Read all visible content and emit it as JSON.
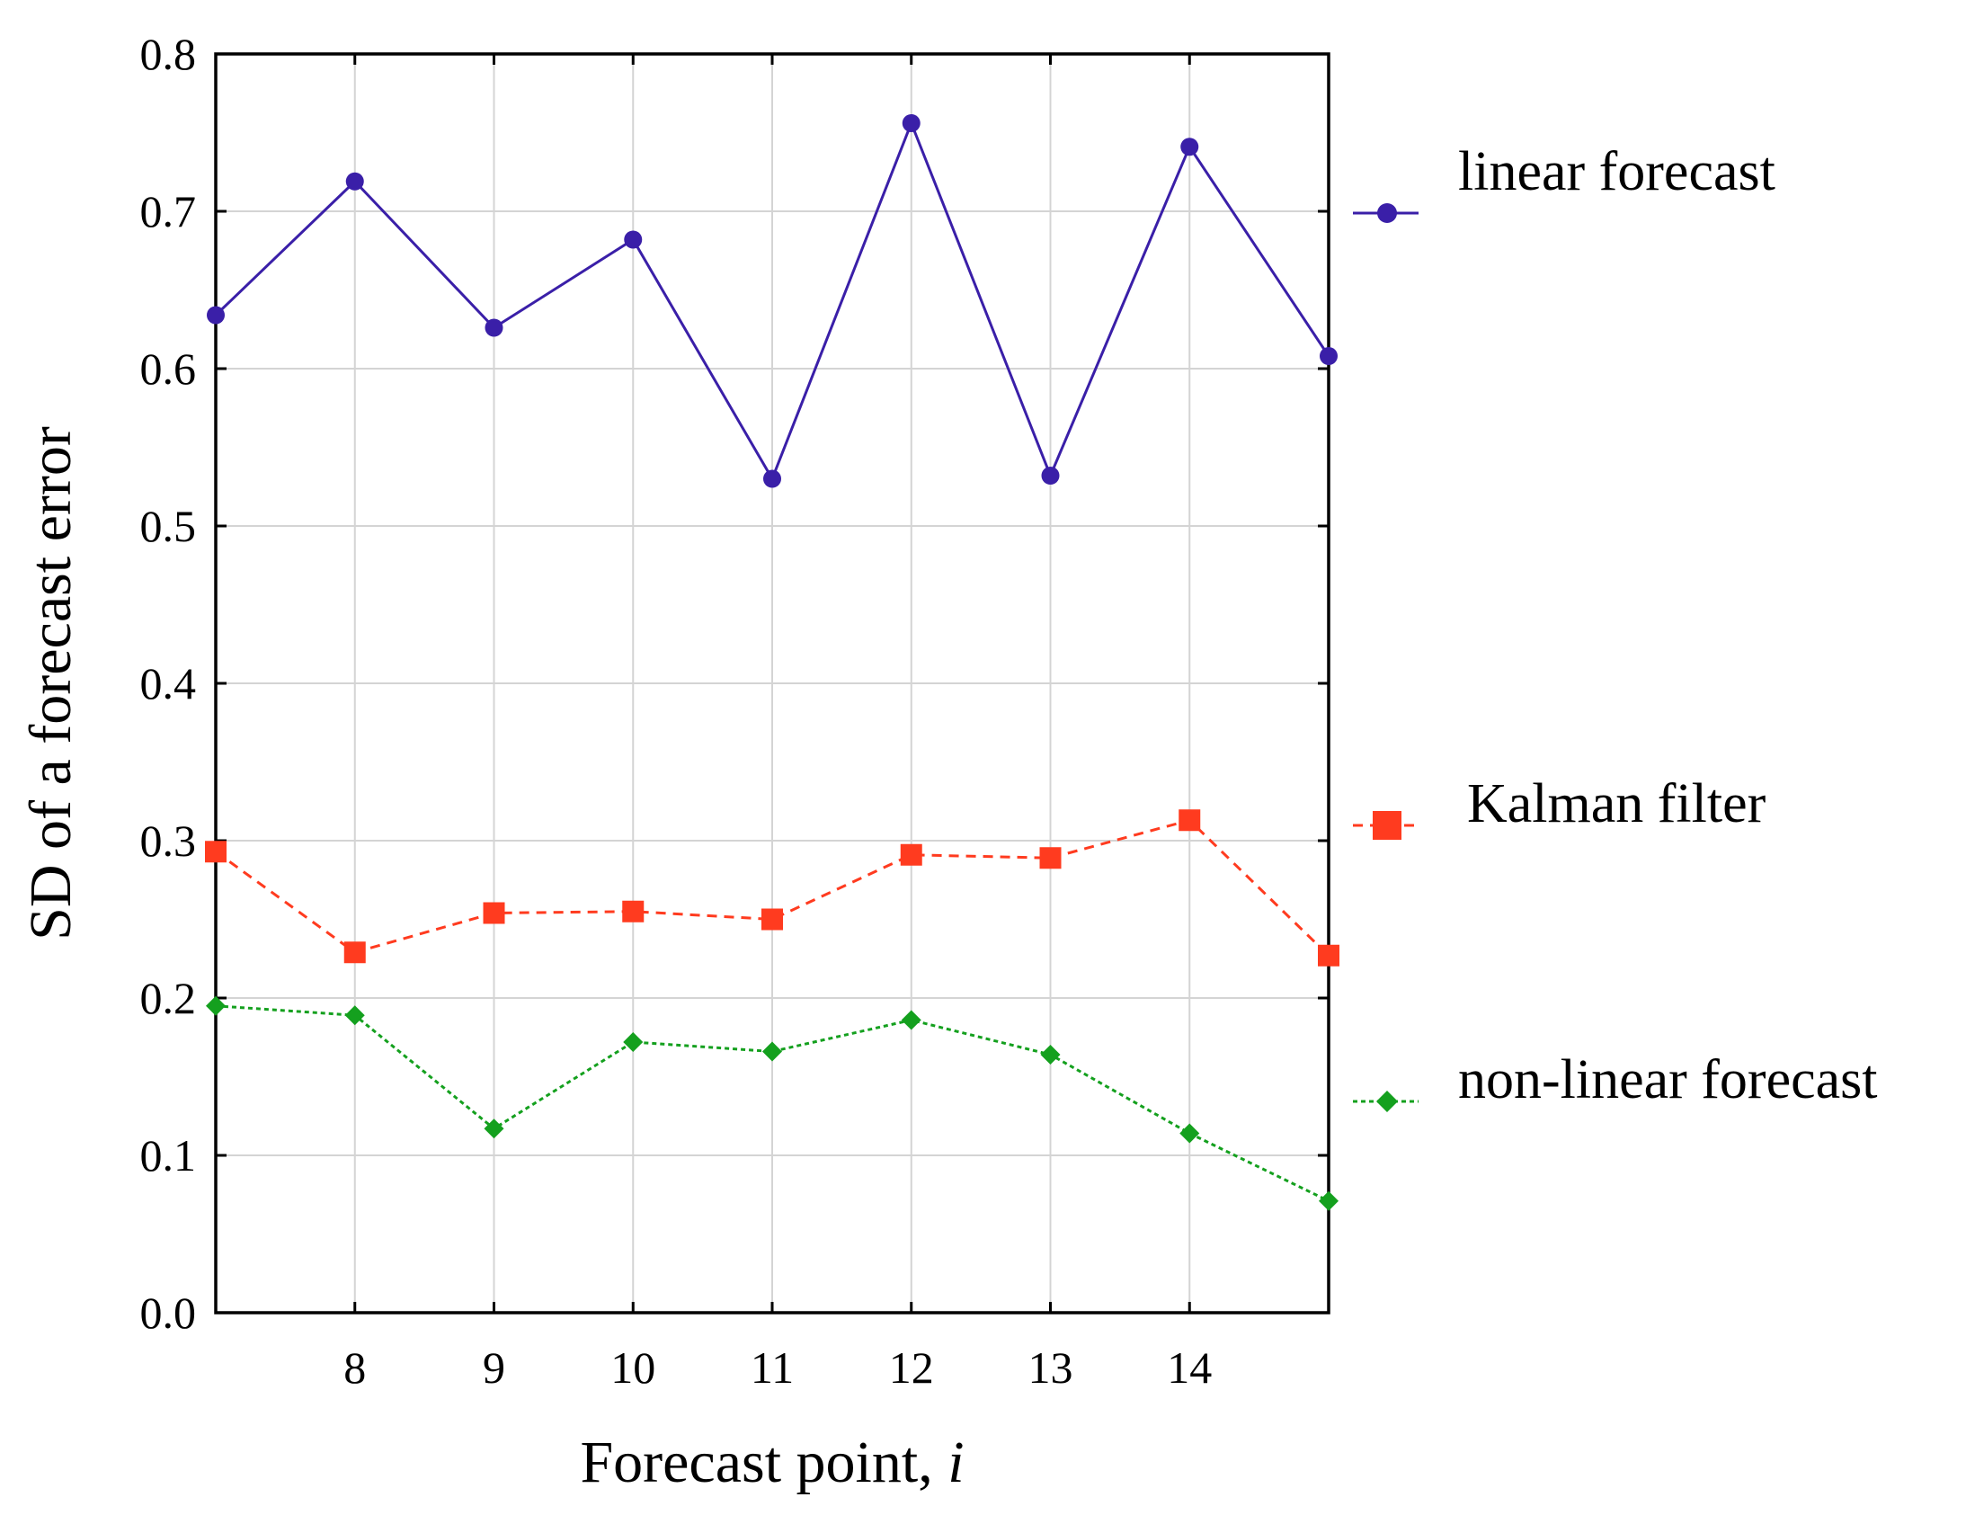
{
  "chart_data": {
    "type": "line",
    "title": "",
    "xlabel": "Forecast point, i",
    "xlabel_main": "Forecast point, ",
    "xlabel_var": "i",
    "ylabel": "SD of a forecast error",
    "xlim": [
      7,
      15
    ],
    "ylim": [
      0,
      0.8
    ],
    "grid": true,
    "legend_position": "right",
    "x_ticks": [
      8,
      9,
      10,
      11,
      12,
      13,
      14
    ],
    "x_tick_labels": [
      "8",
      "9",
      "10",
      "11",
      "12",
      "13",
      "14"
    ],
    "y_ticks": [
      0,
      0.1,
      0.2,
      0.3,
      0.4,
      0.5,
      0.6,
      0.7,
      0.8
    ],
    "y_tick_labels": [
      "0.0",
      "0.1",
      "0.2",
      "0.3",
      "0.4",
      "0.5",
      "0.6",
      "0.7",
      "0.8"
    ],
    "x": [
      7,
      8,
      9,
      10,
      11,
      12,
      13,
      14,
      15
    ],
    "series": [
      {
        "name": "linear forecast",
        "color": "#3a1fa8",
        "line_style": "solid",
        "marker": "circle",
        "values": [
          0.634,
          0.719,
          0.626,
          0.682,
          0.53,
          0.756,
          0.532,
          0.741,
          0.608
        ]
      },
      {
        "name": "Kalman filter",
        "color": "#ff3b1f",
        "line_style": "dashed",
        "marker": "square",
        "values": [
          0.293,
          0.229,
          0.254,
          0.255,
          0.25,
          0.291,
          0.289,
          0.313,
          0.227
        ]
      },
      {
        "name": "non-linear forecast",
        "color": "#14a01e",
        "line_style": "dotted",
        "marker": "diamond",
        "values": [
          0.195,
          0.189,
          0.117,
          0.172,
          0.166,
          0.186,
          0.164,
          0.114,
          0.071
        ]
      }
    ]
  }
}
